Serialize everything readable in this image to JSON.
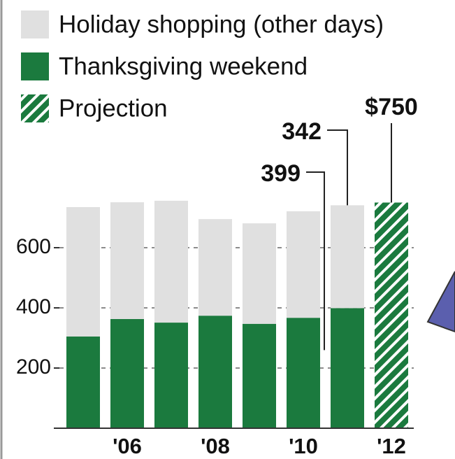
{
  "chart_data": {
    "type": "stacked-bar",
    "categories": [
      null,
      "'06",
      null,
      "'08",
      null,
      "'10",
      null,
      "'12"
    ],
    "series": [
      {
        "name": "Holiday shopping (other days)",
        "color": "#e0e0e0",
        "values": [
          430,
          388,
          405,
          321,
          334,
          354,
          342,
          null
        ],
        "value_labels": [
          null,
          null,
          null,
          null,
          null,
          null,
          "342",
          null
        ]
      },
      {
        "name": "Thanksgiving weekend",
        "color": "#1b7a3e",
        "values": [
          305,
          363,
          351,
          374,
          347,
          367,
          399,
          null
        ],
        "value_labels": [
          null,
          null,
          null,
          null,
          null,
          null,
          "399",
          null
        ]
      },
      {
        "name": "Projection",
        "color": "#1b7a3e",
        "hatch": true,
        "values": [
          null,
          null,
          null,
          null,
          null,
          null,
          null,
          750
        ],
        "value_labels": [
          null,
          null,
          null,
          null,
          null,
          null,
          null,
          "$750"
        ]
      }
    ],
    "ylim": [
      0,
      800
    ],
    "yticks": [
      200,
      400,
      600
    ],
    "grid": true
  }
}
